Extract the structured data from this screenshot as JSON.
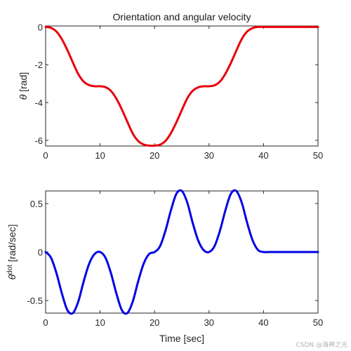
{
  "chart_data": [
    {
      "type": "line",
      "title": "Orientation and angular velocity",
      "ylabel_symbol": "θ",
      "ylabel_unit": " [rad]",
      "xlabel": "",
      "xlim": [
        0,
        50
      ],
      "ylim": [
        -6.3,
        0.05
      ],
      "xticks": [
        0,
        10,
        20,
        30,
        40,
        50
      ],
      "yticks": [
        0,
        -2,
        -4,
        -6
      ],
      "xtick_labels": [
        "0",
        "10",
        "20",
        "30",
        "40",
        "50"
      ],
      "ytick_labels": [
        "0",
        "-2",
        "-4",
        "-6"
      ],
      "grid": false,
      "series": [
        {
          "color": "#e8000b",
          "x": [
            0,
            1,
            2,
            3,
            4,
            5,
            6,
            7,
            8,
            9,
            10,
            11,
            12,
            13,
            14,
            15,
            16,
            17,
            18,
            19,
            20,
            21,
            22,
            23,
            24,
            25,
            26,
            27,
            28,
            29,
            30,
            31,
            32,
            33,
            34,
            35,
            36,
            37,
            38,
            39,
            40,
            41,
            42,
            43,
            44,
            45,
            46,
            47,
            48,
            49,
            50
          ],
          "y": [
            0,
            -0.05,
            -0.25,
            -0.66,
            -1.23,
            -1.88,
            -2.5,
            -2.9,
            -3.08,
            -3.14,
            -3.14,
            -3.19,
            -3.39,
            -3.8,
            -4.37,
            -5.02,
            -5.64,
            -6.04,
            -6.22,
            -6.28,
            -6.28,
            -6.23,
            -6.03,
            -5.62,
            -5.05,
            -4.4,
            -3.78,
            -3.38,
            -3.2,
            -3.14,
            -3.14,
            -3.09,
            -2.89,
            -2.48,
            -1.91,
            -1.26,
            -0.64,
            -0.24,
            -0.06,
            0,
            0,
            0,
            0,
            0,
            0,
            0,
            0,
            0,
            0,
            0,
            0
          ]
        }
      ]
    },
    {
      "type": "line",
      "title": "",
      "ylabel_symbol": "θ",
      "ylabel_sup": "dot",
      "ylabel_unit": " [rad/sec]",
      "xlabel": "Time [sec]",
      "xlim": [
        0,
        50
      ],
      "ylim": [
        -0.63,
        0.63
      ],
      "xticks": [
        0,
        10,
        20,
        30,
        40,
        50
      ],
      "yticks": [
        0.5,
        0,
        -0.5
      ],
      "xtick_labels": [
        "0",
        "10",
        "20",
        "30",
        "40",
        "50"
      ],
      "ytick_labels": [
        "0.5",
        "0",
        "-0.5"
      ],
      "grid": false,
      "series": [
        {
          "color": "#0000e6",
          "x": [
            0,
            1,
            2,
            3,
            4,
            5,
            6,
            7,
            8,
            9,
            10,
            11,
            12,
            13,
            14,
            15,
            16,
            17,
            18,
            19,
            20,
            21,
            22,
            23,
            24,
            25,
            26,
            27,
            28,
            29,
            30,
            31,
            32,
            33,
            34,
            35,
            36,
            37,
            38,
            39,
            40,
            41,
            42,
            43,
            44,
            45,
            46,
            47,
            48,
            49,
            50
          ],
          "y": [
            0,
            -0.06,
            -0.22,
            -0.43,
            -0.6,
            -0.63,
            -0.51,
            -0.3,
            -0.12,
            -0.02,
            0,
            -0.06,
            -0.22,
            -0.43,
            -0.6,
            -0.63,
            -0.51,
            -0.3,
            -0.12,
            -0.02,
            0,
            0.06,
            0.22,
            0.43,
            0.6,
            0.63,
            0.51,
            0.3,
            0.12,
            0.02,
            0,
            0.06,
            0.22,
            0.43,
            0.6,
            0.63,
            0.51,
            0.3,
            0.12,
            0.02,
            0,
            0,
            0,
            0,
            0,
            0,
            0,
            0,
            0,
            0,
            0
          ]
        }
      ]
    }
  ],
  "watermark": "CSDN @海神之光"
}
